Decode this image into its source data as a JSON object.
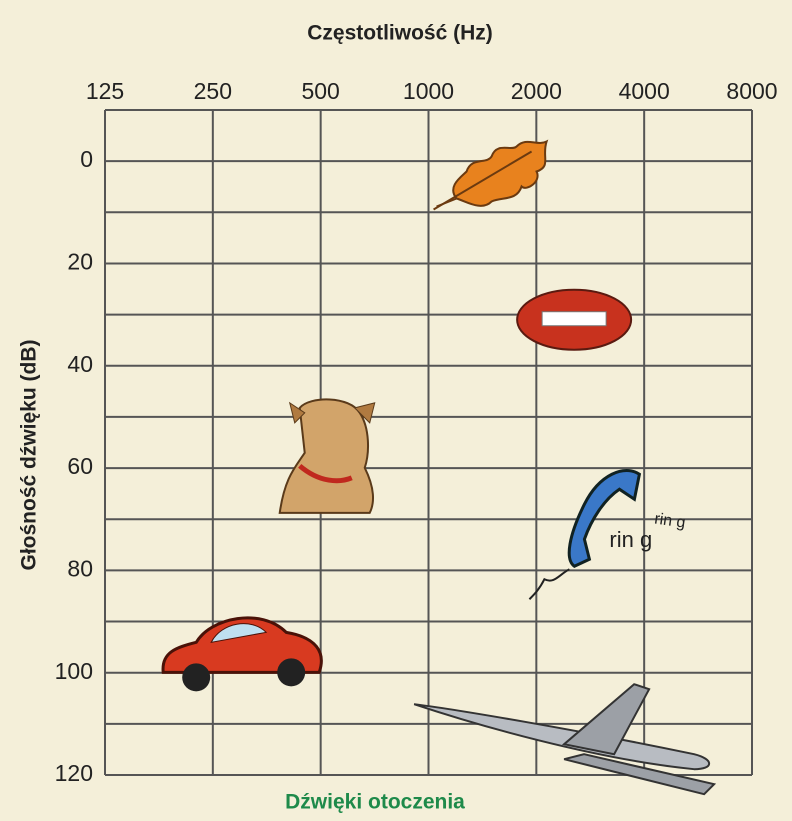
{
  "chart_data": {
    "type": "scatter",
    "title": "Częstotliwość (Hz)",
    "ylabel": "Głośność dźwięku (dB)",
    "caption": "Dźwięki otoczenia",
    "log_x": true,
    "xlim": [
      125,
      8000
    ],
    "xticks": [
      125,
      250,
      500,
      1000,
      2000,
      4000,
      8000
    ],
    "ylim": [
      -10,
      120
    ],
    "yticks": [
      0,
      20,
      40,
      60,
      80,
      100,
      120
    ],
    "ygrid": [
      -10,
      0,
      10,
      20,
      30,
      40,
      50,
      60,
      70,
      80,
      90,
      100,
      110,
      120
    ],
    "x": [
      1500,
      2550,
      530,
      3000,
      300,
      2550
    ],
    "values": [
      3,
      31,
      58,
      70,
      97,
      113
    ],
    "annotations": [
      "rin g",
      "rin g"
    ]
  }
}
